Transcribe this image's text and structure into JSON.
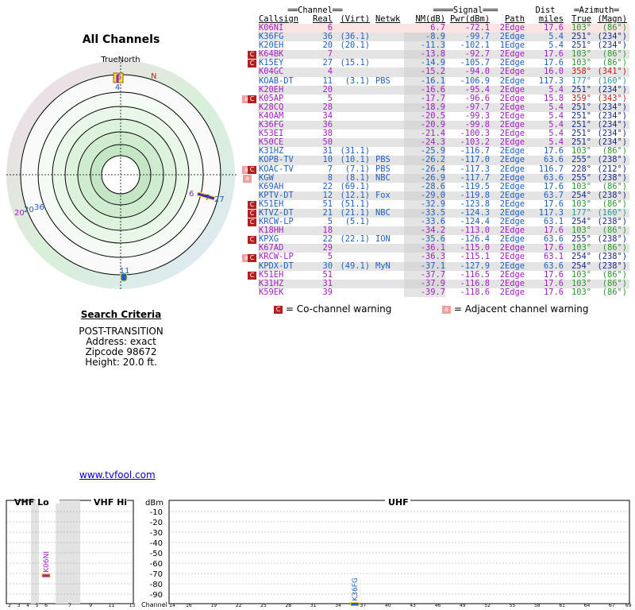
{
  "left": {
    "title": "All Channels",
    "radar_label_north_true": "TrueNorth",
    "radar_label_north_mag": "N",
    "radar_markers": [
      {
        "label": "5",
        "azimuth": 0
      },
      {
        "label": "4",
        "azimuth": 0
      },
      {
        "label": "6",
        "azimuth": 103
      },
      {
        "label": "7",
        "azimuth": 103
      },
      {
        "label": "27",
        "azimuth": 103
      },
      {
        "label": "11",
        "azimuth": 177
      },
      {
        "label": "20",
        "azimuth": 251
      },
      {
        "label": "36",
        "azimuth": 251
      }
    ]
  },
  "criteria": {
    "header": "Search Criteria",
    "mode": "POST-TRANSITION",
    "address": "Address: exact",
    "zipcode": "Zipcode 98672",
    "height": "Height: 20.0 ft."
  },
  "site_link": "www.tvfool.com",
  "table": {
    "group_headers": {
      "channel": "Channel",
      "signal": "Signal",
      "dist": "Dist",
      "azimuth": "Azimuth"
    },
    "columns": {
      "callsign": "Callsign",
      "real": "Real",
      "virt": "(Virt)",
      "netwk": "Netwk",
      "nm": "NM(dB)",
      "pwr": "Pwr(dBm)",
      "path": "Path",
      "dist": "miles",
      "true": "True",
      "magn": "(Magn)"
    },
    "rows": [
      {
        "callsign": "K06NI",
        "real": "6",
        "virt": "",
        "netwk": "",
        "nm": "6.7",
        "pwr": "-72.1",
        "path": "2Edge",
        "dist": "17.6",
        "true": "103°",
        "magn": "(86°)",
        "color": "#a020c0",
        "azcolor": "#2a9a2a",
        "warn": "",
        "hl": true
      },
      {
        "callsign": "K36FG",
        "real": "36",
        "virt": "(36.1)",
        "netwk": "",
        "nm": "-8.9",
        "pwr": "-99.7",
        "path": "2Edge",
        "dist": "5.4",
        "true": "251°",
        "magn": "(234°)",
        "color": "#2060c0",
        "azcolor": "#1a2a8a",
        "warn": ""
      },
      {
        "callsign": "K20EH",
        "real": "20",
        "virt": "(20.1)",
        "netwk": "",
        "nm": "-11.3",
        "pwr": "-102.1",
        "path": "1Edge",
        "dist": "5.4",
        "true": "251°",
        "magn": "(234°)",
        "color": "#2060c0",
        "azcolor": "#1a2a8a",
        "warn": ""
      },
      {
        "callsign": "K64BK",
        "real": "7",
        "virt": "",
        "netwk": "",
        "nm": "-13.8",
        "pwr": "-92.7",
        "path": "2Edge",
        "dist": "17.6",
        "true": "103°",
        "magn": "(86°)",
        "color": "#a020c0",
        "azcolor": "#2a9a2a",
        "warn": "co"
      },
      {
        "callsign": "K15EY",
        "real": "27",
        "virt": "(15.1)",
        "netwk": "",
        "nm": "-14.9",
        "pwr": "-105.7",
        "path": "2Edge",
        "dist": "17.6",
        "true": "103°",
        "magn": "(86°)",
        "color": "#2060c0",
        "azcolor": "#2a9a2a",
        "warn": "co"
      },
      {
        "callsign": "K04GC",
        "real": "4",
        "virt": "",
        "netwk": "",
        "nm": "-15.2",
        "pwr": "-94.0",
        "path": "2Edge",
        "dist": "16.0",
        "true": "358°",
        "magn": "(341°)",
        "color": "#a020c0",
        "azcolor": "#c02020",
        "warn": ""
      },
      {
        "callsign": "KOAB-DT",
        "real": "11",
        "virt": "(3.1)",
        "netwk": "PBS",
        "nm": "-16.1",
        "pwr": "-106.9",
        "path": "2Edge",
        "dist": "117.3",
        "true": "177°",
        "magn": "(160°)",
        "color": "#2060c0",
        "azcolor": "#2a9a9a",
        "warn": ""
      },
      {
        "callsign": "K20EH",
        "real": "20",
        "virt": "",
        "netwk": "",
        "nm": "-16.6",
        "pwr": "-95.4",
        "path": "2Edge",
        "dist": "5.4",
        "true": "251°",
        "magn": "(234°)",
        "color": "#a020c0",
        "azcolor": "#1a2a8a",
        "warn": ""
      },
      {
        "callsign": "K05AP",
        "real": "5",
        "virt": "",
        "netwk": "",
        "nm": "-17.7",
        "pwr": "-96.6",
        "path": "2Edge",
        "dist": "15.8",
        "true": "359°",
        "magn": "(343°)",
        "color": "#a020c0",
        "azcolor": "#c02020",
        "warn": "adjco"
      },
      {
        "callsign": "K28CQ",
        "real": "28",
        "virt": "",
        "netwk": "",
        "nm": "-18.9",
        "pwr": "-97.7",
        "path": "2Edge",
        "dist": "5.4",
        "true": "251°",
        "magn": "(234°)",
        "color": "#a020c0",
        "azcolor": "#1a2a8a",
        "warn": ""
      },
      {
        "callsign": "K40AM",
        "real": "34",
        "virt": "",
        "netwk": "",
        "nm": "-20.5",
        "pwr": "-99.3",
        "path": "2Edge",
        "dist": "5.4",
        "true": "251°",
        "magn": "(234°)",
        "color": "#a020c0",
        "azcolor": "#1a2a8a",
        "warn": ""
      },
      {
        "callsign": "K36FG",
        "real": "36",
        "virt": "",
        "netwk": "",
        "nm": "-20.9",
        "pwr": "-99.8",
        "path": "2Edge",
        "dist": "5.4",
        "true": "251°",
        "magn": "(234°)",
        "color": "#a020c0",
        "azcolor": "#1a2a8a",
        "warn": ""
      },
      {
        "callsign": "K53EI",
        "real": "38",
        "virt": "",
        "netwk": "",
        "nm": "-21.4",
        "pwr": "-100.3",
        "path": "2Edge",
        "dist": "5.4",
        "true": "251°",
        "magn": "(234°)",
        "color": "#a020c0",
        "azcolor": "#1a2a8a",
        "warn": ""
      },
      {
        "callsign": "K50CE",
        "real": "50",
        "virt": "",
        "netwk": "",
        "nm": "-24.3",
        "pwr": "-103.2",
        "path": "2Edge",
        "dist": "5.4",
        "true": "251°",
        "magn": "(234°)",
        "color": "#a020c0",
        "azcolor": "#1a2a8a",
        "warn": ""
      },
      {
        "callsign": "K31HZ",
        "real": "31",
        "virt": "(31.1)",
        "netwk": "",
        "nm": "-25.9",
        "pwr": "-116.7",
        "path": "2Edge",
        "dist": "17.6",
        "true": "103°",
        "magn": "(86°)",
        "color": "#2060c0",
        "azcolor": "#2a9a2a",
        "warn": ""
      },
      {
        "callsign": "KOPB-TV",
        "real": "10",
        "virt": "(10.1)",
        "netwk": "PBS",
        "nm": "-26.2",
        "pwr": "-117.0",
        "path": "2Edge",
        "dist": "63.6",
        "true": "255°",
        "magn": "(238°)",
        "color": "#2060c0",
        "azcolor": "#1a2a8a",
        "warn": ""
      },
      {
        "callsign": "KOAC-TV",
        "real": "7",
        "virt": "(7.1)",
        "netwk": "PBS",
        "nm": "-26.4",
        "pwr": "-117.3",
        "path": "2Edge",
        "dist": "116.7",
        "true": "228°",
        "magn": "(212°)",
        "color": "#2060c0",
        "azcolor": "#1a2a8a",
        "warn": "adjco"
      },
      {
        "callsign": "KGW",
        "real": "8",
        "virt": "(8.1)",
        "netwk": "NBC",
        "nm": "-26.9",
        "pwr": "-117.7",
        "path": "2Edge",
        "dist": "63.6",
        "true": "255°",
        "magn": "(238°)",
        "color": "#2060c0",
        "azcolor": "#1a2a8a",
        "warn": "adj"
      },
      {
        "callsign": "K69AH",
        "real": "22",
        "virt": "(69.1)",
        "netwk": "",
        "nm": "-28.6",
        "pwr": "-119.5",
        "path": "2Edge",
        "dist": "17.6",
        "true": "103°",
        "magn": "(86°)",
        "color": "#2060c0",
        "azcolor": "#2a9a2a",
        "warn": ""
      },
      {
        "callsign": "KPTV-DT",
        "real": "12",
        "virt": "(12.1)",
        "netwk": "Fox",
        "nm": "-29.0",
        "pwr": "-119.8",
        "path": "2Edge",
        "dist": "63.7",
        "true": "254°",
        "magn": "(238°)",
        "color": "#2060c0",
        "azcolor": "#1a2a8a",
        "warn": ""
      },
      {
        "callsign": "K51EH",
        "real": "51",
        "virt": "(51.1)",
        "netwk": "",
        "nm": "-32.9",
        "pwr": "-123.8",
        "path": "2Edge",
        "dist": "17.6",
        "true": "103°",
        "magn": "(86°)",
        "color": "#2060c0",
        "azcolor": "#2a9a2a",
        "warn": "co"
      },
      {
        "callsign": "KTVZ-DT",
        "real": "21",
        "virt": "(21.1)",
        "netwk": "NBC",
        "nm": "-33.5",
        "pwr": "-124.3",
        "path": "2Edge",
        "dist": "117.3",
        "true": "177°",
        "magn": "(160°)",
        "color": "#2060c0",
        "azcolor": "#2a9a9a",
        "warn": "co"
      },
      {
        "callsign": "KRCW-LP",
        "real": "5",
        "virt": "(5.1)",
        "netwk": "",
        "nm": "-33.6",
        "pwr": "-124.4",
        "path": "2Edge",
        "dist": "63.1",
        "true": "254°",
        "magn": "(238°)",
        "color": "#2060c0",
        "azcolor": "#1a2a8a",
        "warn": "co"
      },
      {
        "callsign": "K18HH",
        "real": "18",
        "virt": "",
        "netwk": "",
        "nm": "-34.2",
        "pwr": "-113.0",
        "path": "2Edge",
        "dist": "17.6",
        "true": "103°",
        "magn": "(86°)",
        "color": "#a020c0",
        "azcolor": "#2a9a2a",
        "warn": ""
      },
      {
        "callsign": "KPXG",
        "real": "22",
        "virt": "(22.1)",
        "netwk": "ION",
        "nm": "-35.6",
        "pwr": "-126.4",
        "path": "2Edge",
        "dist": "63.6",
        "true": "255°",
        "magn": "(238°)",
        "color": "#2060c0",
        "azcolor": "#1a2a8a",
        "warn": "co"
      },
      {
        "callsign": "K67AD",
        "real": "29",
        "virt": "",
        "netwk": "",
        "nm": "-36.1",
        "pwr": "-115.0",
        "path": "2Edge",
        "dist": "17.6",
        "true": "103°",
        "magn": "(86°)",
        "color": "#a020c0",
        "azcolor": "#2a9a2a",
        "warn": ""
      },
      {
        "callsign": "KRCW-LP",
        "real": "5",
        "virt": "",
        "netwk": "",
        "nm": "-36.3",
        "pwr": "-115.1",
        "path": "2Edge",
        "dist": "63.1",
        "true": "254°",
        "magn": "(238°)",
        "color": "#a020c0",
        "azcolor": "#1a2a8a",
        "warn": "adjco"
      },
      {
        "callsign": "KPDX-DT",
        "real": "30",
        "virt": "(49.1)",
        "netwk": "MyN",
        "nm": "-37.1",
        "pwr": "-127.9",
        "path": "2Edge",
        "dist": "63.6",
        "true": "254°",
        "magn": "(238°)",
        "color": "#2060c0",
        "azcolor": "#1a2a8a",
        "warn": ""
      },
      {
        "callsign": "K51EH",
        "real": "51",
        "virt": "",
        "netwk": "",
        "nm": "-37.7",
        "pwr": "-116.5",
        "path": "2Edge",
        "dist": "17.6",
        "true": "103°",
        "magn": "(86°)",
        "color": "#a020c0",
        "azcolor": "#2a9a2a",
        "warn": "co"
      },
      {
        "callsign": "K31HZ",
        "real": "31",
        "virt": "",
        "netwk": "",
        "nm": "-37.9",
        "pwr": "-116.8",
        "path": "2Edge",
        "dist": "17.6",
        "true": "103°",
        "magn": "(86°)",
        "color": "#a020c0",
        "azcolor": "#2a9a2a",
        "warn": ""
      },
      {
        "callsign": "K59EK",
        "real": "39",
        "virt": "",
        "netwk": "",
        "nm": "-39.7",
        "pwr": "-118.6",
        "path": "2Edge",
        "dist": "17.6",
        "true": "103°",
        "magn": "(86°)",
        "color": "#a020c0",
        "azcolor": "#2a9a2a",
        "warn": ""
      }
    ]
  },
  "legend": {
    "co_label": "= Co-channel warning",
    "adj_label": "= Adjacent channel warning",
    "co_glyph": "C",
    "adj_glyph": "a"
  },
  "spectrum": {
    "vhf_lo_label": "VHF Lo",
    "vhf_hi_label": "VHF Hi",
    "uhf_label": "UHF",
    "dbm_label": "dBm",
    "channel_label": "Channel",
    "dbm_ticks": [
      "-10",
      "-20",
      "-30",
      "-40",
      "-50",
      "-60",
      "-70",
      "-80",
      "-90"
    ],
    "lo_channels": [
      "2",
      "3",
      "4",
      "5",
      "6"
    ],
    "hi_channels": [
      "7",
      "9",
      "11",
      "13"
    ],
    "uhf_channels": [
      "14",
      "16",
      "19",
      "22",
      "25",
      "28",
      "31",
      "34",
      "37",
      "40",
      "43",
      "46",
      "49",
      "52",
      "55",
      "58",
      "61",
      "64",
      "67",
      "69"
    ],
    "bars": [
      {
        "label": "K06NI",
        "channel": 6,
        "dbm": -72.1,
        "color": "#a020c0"
      },
      {
        "label": "K36FG",
        "channel": 36,
        "dbm": -99.7,
        "color": "#2060c0"
      }
    ]
  }
}
